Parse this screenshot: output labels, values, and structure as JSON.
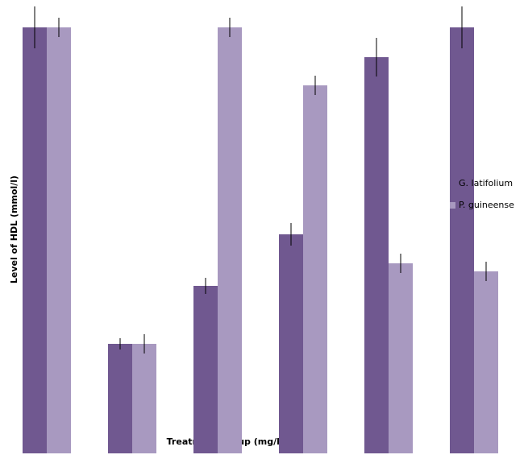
{
  "chart_data": {
    "type": "bar",
    "y_label": "Level of HDL (mmol/l)",
    "x_label": "Treatment group (mg/kg)",
    "categories": [
      null,
      null,
      null,
      null,
      null,
      null
    ],
    "series": [
      {
        "name": "G. latifolium",
        "color": "#705890",
        "values": [
          529,
          136,
          208,
          272,
          492,
          529
        ],
        "errors": [
          26,
          7,
          10,
          14,
          24,
          26
        ]
      },
      {
        "name": "P. guineense",
        "color": "#a899c0",
        "values": [
          529,
          136,
          529,
          457,
          236,
          226
        ],
        "errors": [
          12,
          12,
          12,
          12,
          12,
          12
        ]
      }
    ],
    "ylim": [
      0,
      529
    ],
    "legend": "right"
  }
}
